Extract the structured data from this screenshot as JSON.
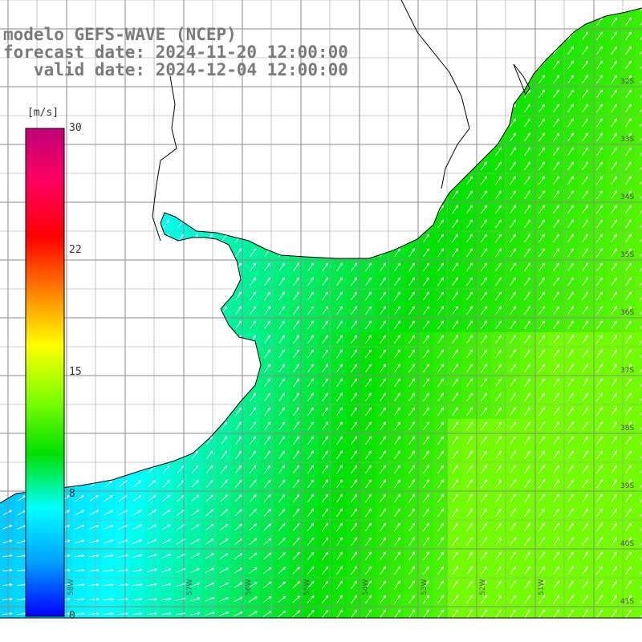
{
  "title": {
    "model_line": "modelo GEFS-WAVE (NCEP)",
    "forecast_line": "forecast date: 2024-11-20 12:00:00",
    "valid_line": "valid date: 2024-12-04 12:00:00"
  },
  "colorbar": {
    "unit": "[m/s]",
    "ticks": [
      "30",
      "22",
      "15",
      "8",
      "0"
    ],
    "min": 0,
    "max": 30,
    "stops": [
      "#0000ff",
      "#00a0ff",
      "#00ffff",
      "#00e000",
      "#80ff00",
      "#ffff00",
      "#ff8000",
      "#ff0000",
      "#ff0060",
      "#c0007a"
    ]
  },
  "map": {
    "lon_labels": [
      "58W",
      "57W",
      "56W",
      "55W",
      "54W",
      "53W",
      "52W",
      "51W"
    ],
    "lat_labels": [
      "32S",
      "33S",
      "34S",
      "35S",
      "36S",
      "37S",
      "38S",
      "39S",
      "40S",
      "41S"
    ],
    "land_color": "#ffffff",
    "grid_color": "#808080",
    "coast_color": "#000000",
    "arrow_color": "#ffffff"
  },
  "field": {
    "variable": "wind speed",
    "unit": "m/s",
    "approx_range": [
      4,
      13
    ],
    "direction": "arrows point to NE offshore, to E near the Uruguay coast"
  }
}
